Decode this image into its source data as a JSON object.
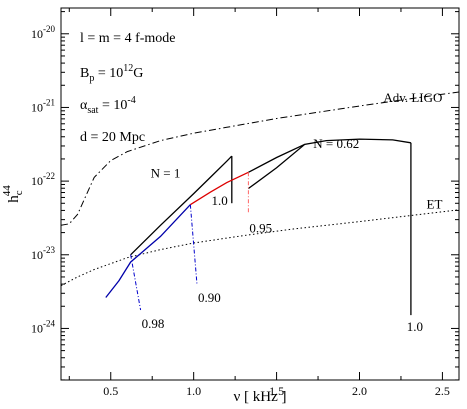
{
  "chart_data": {
    "type": "line",
    "title": "",
    "xlabel": "ν [ kHz ]",
    "ylabel_base": "h",
    "ylabel_sub": "c",
    "ylabel_sup": "44",
    "xlim": [
      0.2,
      2.6
    ],
    "ylim_log10": [
      -24.7,
      -19.65
    ],
    "log_y": true,
    "grid": false,
    "x_ticks": [
      {
        "value": 0.5,
        "label": "0.5"
      },
      {
        "value": 1.0,
        "label": "1.0"
      },
      {
        "value": 1.5,
        "label": "1.5"
      },
      {
        "value": 2.0,
        "label": "2.0"
      },
      {
        "value": 2.5,
        "label": "2.5"
      }
    ],
    "y_ticks": [
      {
        "exp": -24,
        "base": "10",
        "sup": "-24"
      },
      {
        "exp": -23,
        "base": "10",
        "sup": "-23"
      },
      {
        "exp": -22,
        "base": "10",
        "sup": "-22"
      },
      {
        "exp": -21,
        "base": "10",
        "sup": "-21"
      },
      {
        "exp": -20,
        "base": "10",
        "sup": "-20"
      }
    ],
    "annotations": {
      "mode": "l = m = 4 f-mode",
      "bp_base": "B",
      "bp_sub": "p",
      "bp_eq": " = 10",
      "bp_sup": "12",
      "bp_unit": "G",
      "alpha_base": "α",
      "alpha_sub": "sat",
      "alpha_eq": " = 10",
      "alpha_sup": "-4",
      "distance": "d = 20 Mpc"
    },
    "sensitivity_curves": [
      {
        "name": "Adv. LIGO",
        "style": "dash-dot",
        "color": "#000000",
        "points": [
          [
            0.2,
            -22.6
          ],
          [
            0.25,
            -22.58
          ],
          [
            0.3,
            -22.45
          ],
          [
            0.35,
            -22.2
          ],
          [
            0.4,
            -21.95
          ],
          [
            0.5,
            -21.72
          ],
          [
            0.6,
            -21.6
          ],
          [
            0.8,
            -21.45
          ],
          [
            1.0,
            -21.35
          ],
          [
            1.2,
            -21.27
          ],
          [
            1.5,
            -21.15
          ],
          [
            2.0,
            -20.98
          ],
          [
            2.5,
            -20.82
          ],
          [
            2.6,
            -20.79
          ]
        ]
      },
      {
        "name": "ET",
        "style": "dotted",
        "color": "#000000",
        "points": [
          [
            0.2,
            -23.42
          ],
          [
            0.3,
            -23.3
          ],
          [
            0.4,
            -23.2
          ],
          [
            0.5,
            -23.12
          ],
          [
            0.6,
            -23.04
          ],
          [
            0.8,
            -22.93
          ],
          [
            1.0,
            -22.84
          ],
          [
            1.3,
            -22.74
          ],
          [
            1.6,
            -22.65
          ],
          [
            2.0,
            -22.55
          ],
          [
            2.3,
            -22.47
          ],
          [
            2.6,
            -22.39
          ]
        ]
      }
    ],
    "signal_curves": [
      {
        "label": "N = 1",
        "color": "#000000",
        "points": [
          [
            0.62,
            -23.0
          ],
          [
            0.8,
            -22.6
          ],
          [
            1.0,
            -22.17
          ],
          [
            1.1,
            -21.95
          ],
          [
            1.2,
            -21.73
          ],
          [
            1.23,
            -21.66
          ]
        ],
        "drop_to": -22.3,
        "drop_label": "1.0"
      },
      {
        "label": "N = 0.62",
        "color": "#000000",
        "points": [
          [
            1.33,
            -22.1
          ],
          [
            1.5,
            -21.82
          ],
          [
            1.67,
            -21.5
          ],
          [
            1.8,
            -21.45
          ],
          [
            2.0,
            -21.43
          ],
          [
            2.2,
            -21.44
          ],
          [
            2.31,
            -21.48
          ]
        ],
        "drop_to": -23.82,
        "drop_label": "1.0"
      },
      {
        "label": "",
        "color": "#0000aa",
        "points": [
          [
            0.47,
            -23.58
          ],
          [
            0.55,
            -23.35
          ],
          [
            0.62,
            -23.1
          ],
          [
            0.8,
            -22.75
          ],
          [
            0.98,
            -22.32
          ]
        ]
      },
      {
        "label": "",
        "color": "#dd0000",
        "points": [
          [
            0.98,
            -22.32
          ],
          [
            1.1,
            -22.15
          ],
          [
            1.2,
            -22.02
          ],
          [
            1.33,
            -21.88
          ]
        ]
      },
      {
        "label": "",
        "color": "#000000",
        "points": [
          [
            1.33,
            -21.88
          ],
          [
            1.5,
            -21.68
          ],
          [
            1.67,
            -21.5
          ]
        ]
      }
    ],
    "cutoff_lines": [
      {
        "label": "0.98",
        "color": "#0000cc",
        "x_top": 0.62,
        "y_top": -23.0,
        "x_bot": 0.68,
        "y_bot": -23.75
      },
      {
        "label": "0.90",
        "color": "#0000cc",
        "x_top": 0.98,
        "y_top": -22.32,
        "x_bot": 1.02,
        "y_bot": -23.4
      },
      {
        "label": "0.95",
        "color": "#ff6666",
        "x_top": 1.33,
        "y_top": -21.88,
        "x_bot": 1.33,
        "y_bot": -22.45
      }
    ],
    "legend": {
      "placement": "on-curve"
    }
  }
}
